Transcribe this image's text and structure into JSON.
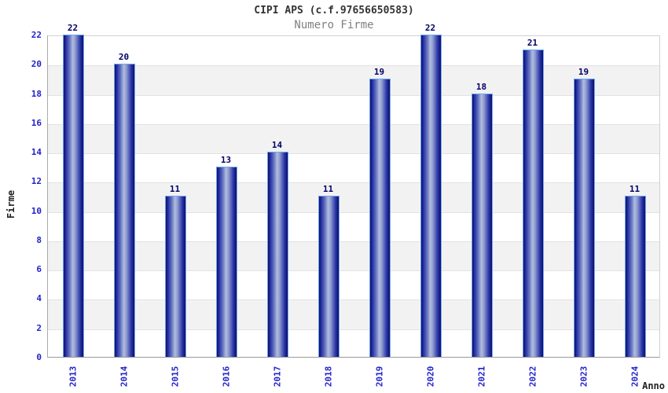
{
  "chart_data": {
    "type": "bar",
    "title": "CIPI APS (c.f.97656650583)",
    "subtitle": "Numero Firme",
    "xlabel": "Anno",
    "ylabel": "Firme",
    "categories": [
      "2013",
      "2014",
      "2015",
      "2016",
      "2017",
      "2018",
      "2019",
      "2020",
      "2021",
      "2022",
      "2023",
      "2024"
    ],
    "values": [
      22,
      20,
      11,
      13,
      14,
      11,
      19,
      22,
      18,
      21,
      19,
      11
    ],
    "ylim": [
      0,
      22
    ],
    "ytick_step": 2,
    "grid": true,
    "alternating_bands": true,
    "legend_position": "none"
  },
  "colors": {
    "title": "#333333",
    "subtitle": "#808080",
    "tick_label": "#2222cc",
    "value_label": "#000066",
    "axis_title": "#222222",
    "band_gray": "#f2f2f2",
    "gridline": "#e2e2e2",
    "bar_edge": "#0e0e68",
    "bar_dark": "#2a35a8",
    "bar_mid": "#b2bcde",
    "bar_light_mid": "#93a0d2",
    "bar_outline": "#6fa8ee"
  }
}
